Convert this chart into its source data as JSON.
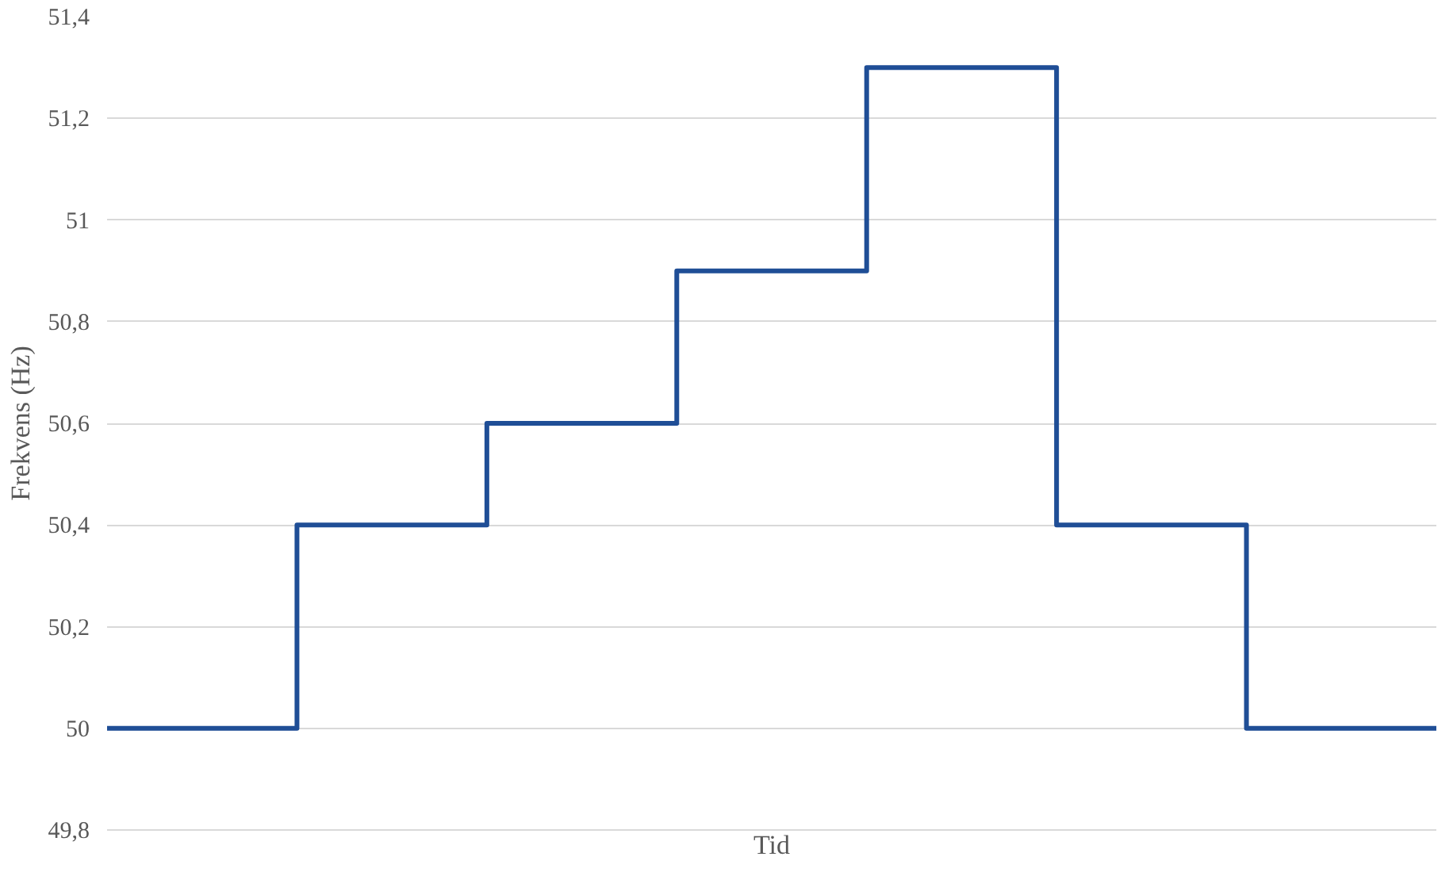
{
  "chart_data": {
    "type": "step",
    "xlabel": "Tid",
    "ylabel": "Frekvens (Hz)",
    "categories": [
      null,
      null,
      null,
      null,
      null,
      null,
      null,
      null
    ],
    "series": [
      {
        "color": "#1f4e96",
        "values": [
          50,
          50.4,
          50.6,
          50.9,
          51.3,
          50.4,
          50,
          50
        ]
      }
    ],
    "ylim": [
      49.8,
      51.4
    ],
    "yticks": [
      {
        "value": 49.8,
        "label": "49,8"
      },
      {
        "value": 50,
        "label": "50"
      },
      {
        "value": 50.2,
        "label": "50,2"
      },
      {
        "value": 50.4,
        "label": "50,4"
      },
      {
        "value": 50.6,
        "label": "50,6"
      },
      {
        "value": 50.8,
        "label": "50,8"
      },
      {
        "value": 51,
        "label": "51"
      },
      {
        "value": 51.2,
        "label": "51,2"
      },
      {
        "value": 51.4,
        "label": "51,4"
      }
    ],
    "grid": "y",
    "tick_labels": "y"
  }
}
